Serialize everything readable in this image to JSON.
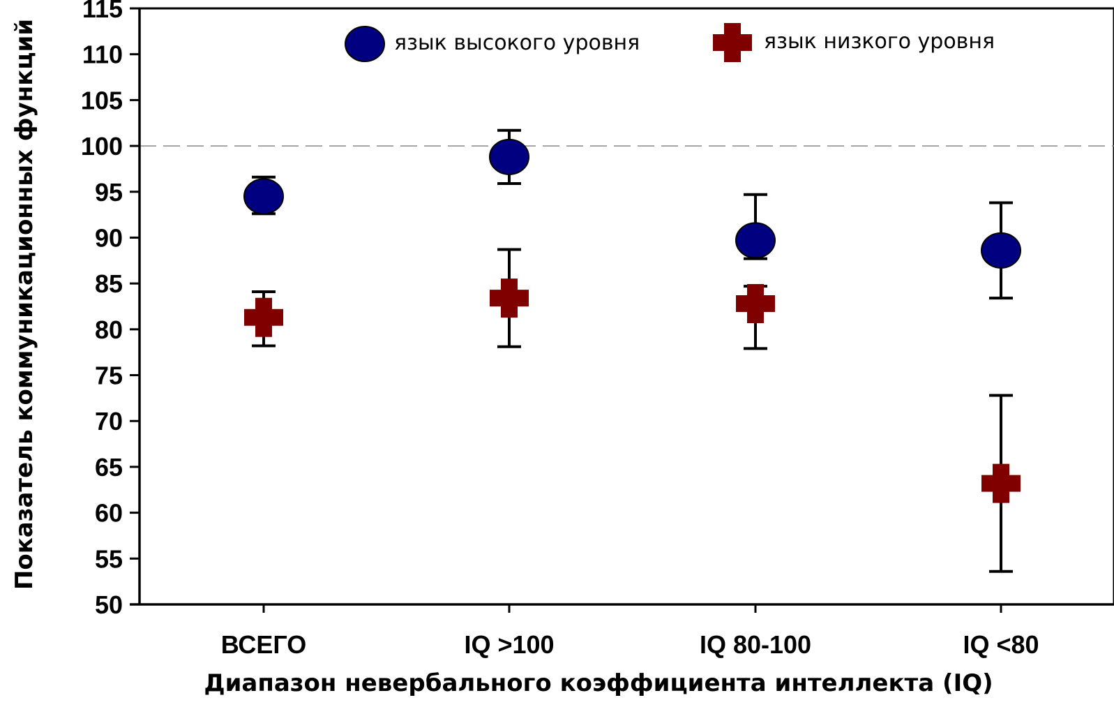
{
  "chart_data": {
    "type": "scatter",
    "categories": [
      "ВСЕГО",
      "IQ >100",
      "IQ 80-100",
      "IQ <80"
    ],
    "xlabel": "Диапазон невербального коэффициента интеллекта (IQ)",
    "ylabel": "Показатель коммуникационных функций",
    "ylim": [
      50,
      115
    ],
    "yticks": [
      50,
      55,
      60,
      65,
      70,
      75,
      80,
      85,
      90,
      95,
      100,
      105,
      110,
      115
    ],
    "reference_line": 100,
    "grid": false,
    "legend_position": "top",
    "series": [
      {
        "name": "язык высокого уровня",
        "marker": "circle",
        "color": "#000080",
        "values": [
          94.5,
          98.8,
          89.7,
          88.6
        ],
        "err_low": [
          92.6,
          95.9,
          87.7,
          83.4
        ],
        "err_high": [
          96.6,
          101.7,
          94.7,
          93.8
        ]
      },
      {
        "name": "язык низкого уровня",
        "marker": "cross",
        "color": "#800000",
        "values": [
          81.3,
          83.4,
          82.8,
          63.2
        ],
        "err_low": [
          78.2,
          78.1,
          77.9,
          53.6
        ],
        "err_high": [
          84.1,
          88.7,
          84.7,
          72.8
        ]
      }
    ]
  }
}
